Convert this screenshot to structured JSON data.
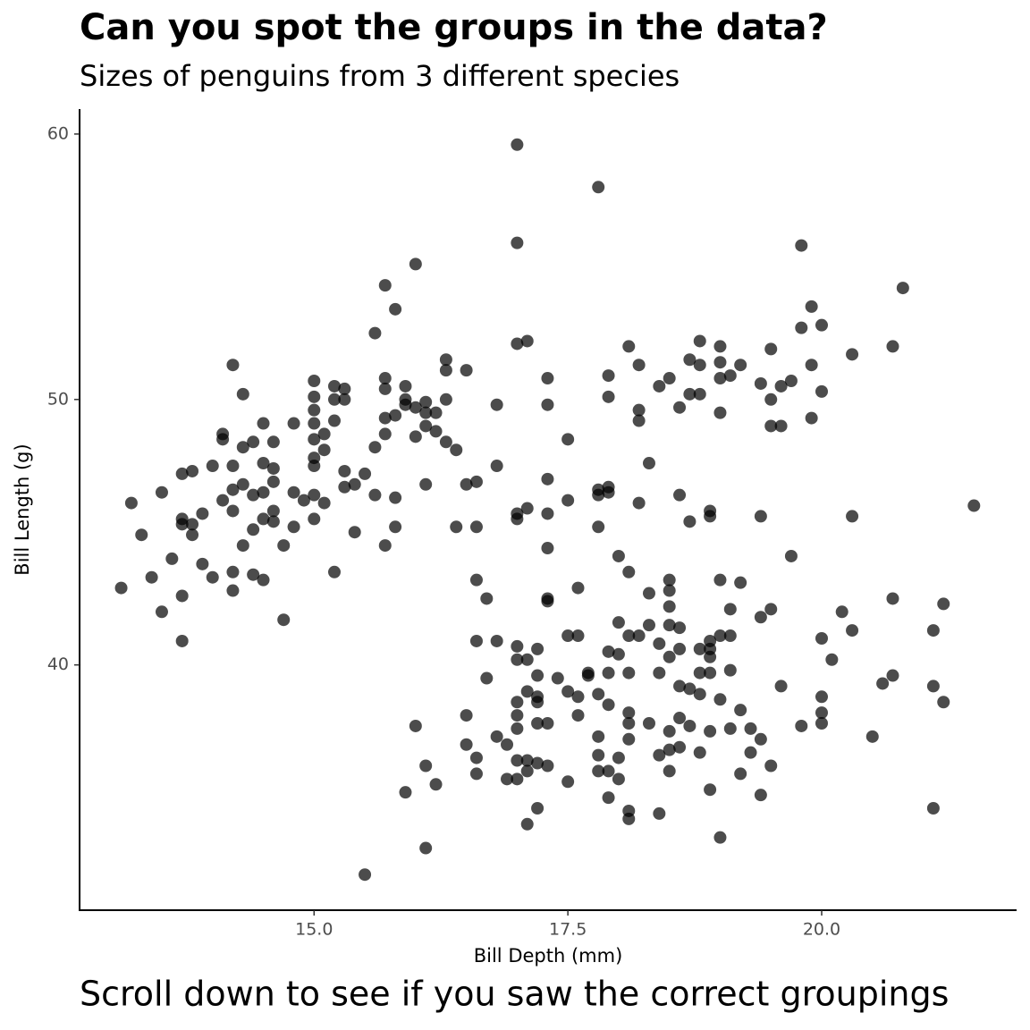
{
  "chart_data": {
    "type": "scatter",
    "title": "Can you spot the groups in the data?",
    "subtitle": "Sizes of penguins from 3 different species",
    "x_label": "Bill Depth (mm)",
    "y_label": "Bill Length (g)",
    "caption": "Scroll down to see if you saw the correct groupings",
    "color": "#000000",
    "xlim": [
      12.69,
      21.92
    ],
    "ylim": [
      30.76,
      60.94
    ],
    "xticks": [
      {
        "value": 15,
        "label": "15.0"
      },
      {
        "value": 17.5,
        "label": "17.5"
      },
      {
        "value": 20,
        "label": "20.0"
      }
    ],
    "yticks": [
      40,
      50,
      60
    ],
    "grid": false,
    "x": [
      13.1,
      13.2,
      13.3,
      13.4,
      13.5,
      13.5,
      13.6,
      13.7,
      13.7,
      13.7,
      13.7,
      13.7,
      13.8,
      13.8,
      13.8,
      13.9,
      13.9,
      14.0,
      14.0,
      14.1,
      14.1,
      14.1,
      14.2,
      14.2,
      14.2,
      14.2,
      14.2,
      14.2,
      14.3,
      14.3,
      14.3,
      14.3,
      14.4,
      14.4,
      14.4,
      14.4,
      14.5,
      14.5,
      14.5,
      14.5,
      14.5,
      14.6,
      14.6,
      14.6,
      14.6,
      14.6,
      14.7,
      14.7,
      14.8,
      14.8,
      14.8,
      14.9,
      15.0,
      15.0,
      15.0,
      15.0,
      15.0,
      15.0,
      15.0,
      15.0,
      15.0,
      15.1,
      15.1,
      15.1,
      15.2,
      15.2,
      15.2,
      15.2,
      15.3,
      15.3,
      15.3,
      15.3,
      15.4,
      15.4,
      15.5,
      15.6,
      15.6,
      15.6,
      15.7,
      15.7,
      15.7,
      15.7,
      15.7,
      15.7,
      15.8,
      15.8,
      15.8,
      15.8,
      15.9,
      15.9,
      15.9,
      16.0,
      16.0,
      16.0,
      16.1,
      16.1,
      16.1,
      16.1,
      16.2,
      16.2,
      16.3,
      16.3,
      16.3,
      16.3,
      16.4,
      16.4,
      16.5,
      16.5,
      16.6,
      16.6,
      16.8,
      16.8,
      17.0,
      17.0,
      17.0,
      17.1,
      17.0,
      17.0,
      17.1,
      17.3,
      17.3,
      17.3,
      17.3,
      17.3,
      17.5,
      17.5,
      17.8,
      17.8,
      17.8,
      17.8,
      17.9,
      17.9,
      17.9,
      17.9,
      18.1,
      18.2,
      18.2,
      18.2,
      18.2,
      18.3,
      18.4,
      18.5,
      18.6,
      18.6,
      18.7,
      18.7,
      18.7,
      18.8,
      18.8,
      18.8,
      18.9,
      18.9,
      19.0,
      19.0,
      19.0,
      19.0,
      19.1,
      19.2,
      19.4,
      19.4,
      19.5,
      19.5,
      19.5,
      19.6,
      19.6,
      19.7,
      19.7,
      19.8,
      19.8,
      19.9,
      19.9,
      19.9,
      20.0,
      20.0,
      20.3,
      20.3,
      20.7,
      20.8,
      21.5,
      15.5,
      16.0,
      16.1,
      16.1,
      15.9,
      16.2,
      16.5,
      16.5,
      16.6,
      16.6,
      16.6,
      16.6,
      16.7,
      16.7,
      16.8,
      16.8,
      16.9,
      16.9,
      17.0,
      17.0,
      17.0,
      17.0,
      17.0,
      17.0,
      17.0,
      17.1,
      17.1,
      17.1,
      17.1,
      17.1,
      17.2,
      17.2,
      17.2,
      17.2,
      17.2,
      17.2,
      17.2,
      17.3,
      17.3,
      17.3,
      17.3,
      17.4,
      17.5,
      17.5,
      17.5,
      17.6,
      17.6,
      17.6,
      17.6,
      17.7,
      17.7,
      17.8,
      17.8,
      17.8,
      17.8,
      17.9,
      17.9,
      17.9,
      17.9,
      17.9,
      18.0,
      18.0,
      18.0,
      18.0,
      18.0,
      18.1,
      18.1,
      18.1,
      18.1,
      18.1,
      18.1,
      18.1,
      18.1,
      18.2,
      18.3,
      18.3,
      18.3,
      18.4,
      18.4,
      18.4,
      18.4,
      18.5,
      18.5,
      18.5,
      18.5,
      18.5,
      18.5,
      18.5,
      18.5,
      18.6,
      18.6,
      18.6,
      18.6,
      18.6,
      18.7,
      18.7,
      18.8,
      18.8,
      18.8,
      18.8,
      18.9,
      18.9,
      18.9,
      18.9,
      18.9,
      18.9,
      19.0,
      19.0,
      19.0,
      19.0,
      19.1,
      19.1,
      19.1,
      19.1,
      19.2,
      19.2,
      19.2,
      19.3,
      19.3,
      19.4,
      19.4,
      19.4,
      19.5,
      19.5,
      19.6,
      19.8,
      20.0,
      20.0,
      20.0,
      20.0,
      20.1,
      20.2,
      20.3,
      20.5,
      20.6,
      20.7,
      20.7,
      21.1,
      21.1,
      21.1,
      21.2,
      21.2
    ],
    "values": [
      42.9,
      46.1,
      44.9,
      43.3,
      46.5,
      42.0,
      44.0,
      47.2,
      45.5,
      45.3,
      42.6,
      40.9,
      47.3,
      45.3,
      44.9,
      45.7,
      43.8,
      47.5,
      43.3,
      48.7,
      48.5,
      46.2,
      51.3,
      47.5,
      46.6,
      45.8,
      43.5,
      42.8,
      50.2,
      48.2,
      46.8,
      44.5,
      48.4,
      46.4,
      45.1,
      43.4,
      49.1,
      47.6,
      46.5,
      45.5,
      43.2,
      48.4,
      47.4,
      46.9,
      45.8,
      45.4,
      44.5,
      41.7,
      49.1,
      46.5,
      45.2,
      46.2,
      50.7,
      50.1,
      49.6,
      49.1,
      48.5,
      47.8,
      47.5,
      46.4,
      45.5,
      48.7,
      48.1,
      46.1,
      50.5,
      50.0,
      49.2,
      43.5,
      50.4,
      50.0,
      47.3,
      46.7,
      46.8,
      45.0,
      47.2,
      52.5,
      48.2,
      46.4,
      54.3,
      50.8,
      50.4,
      49.3,
      48.7,
      44.5,
      53.4,
      49.4,
      46.3,
      45.2,
      50.5,
      50.0,
      49.8,
      55.1,
      49.7,
      48.6,
      49.9,
      49.5,
      49.0,
      46.8,
      49.5,
      48.8,
      51.5,
      51.1,
      50.0,
      48.4,
      48.1,
      45.2,
      51.1,
      46.8,
      46.9,
      45.2,
      49.8,
      47.5,
      59.6,
      55.9,
      52.1,
      52.2,
      45.7,
      45.5,
      45.9,
      50.8,
      49.8,
      47.0,
      45.7,
      44.4,
      48.5,
      46.2,
      58.0,
      46.6,
      46.4,
      45.2,
      50.9,
      50.1,
      46.7,
      46.5,
      52.0,
      51.3,
      49.6,
      49.2,
      46.1,
      47.6,
      50.5,
      50.8,
      49.7,
      46.4,
      51.5,
      50.2,
      45.4,
      52.2,
      51.3,
      50.2,
      45.8,
      45.6,
      52.0,
      51.4,
      50.8,
      49.5,
      50.9,
      51.3,
      50.6,
      45.6,
      51.9,
      50.0,
      49.0,
      50.5,
      49.0,
      50.7,
      44.1,
      55.8,
      52.7,
      53.5,
      51.3,
      49.3,
      52.8,
      50.3,
      51.7,
      45.6,
      52.0,
      54.2,
      46.0,
      32.1,
      37.7,
      36.2,
      33.1,
      35.2,
      35.5,
      38.1,
      37.0,
      43.2,
      40.9,
      36.5,
      35.9,
      42.5,
      39.5,
      40.9,
      37.3,
      37.0,
      35.7,
      40.7,
      40.2,
      38.6,
      38.1,
      37.6,
      36.4,
      35.7,
      40.2,
      39.0,
      36.4,
      36.0,
      34.0,
      40.6,
      39.6,
      38.8,
      38.6,
      37.8,
      36.3,
      34.6,
      42.5,
      42.4,
      37.8,
      36.2,
      39.5,
      41.1,
      39.0,
      35.6,
      42.9,
      41.1,
      38.8,
      38.1,
      39.7,
      39.6,
      38.9,
      37.3,
      36.6,
      36.0,
      40.5,
      39.7,
      38.5,
      36.0,
      35.0,
      44.1,
      41.6,
      40.4,
      36.5,
      35.7,
      43.5,
      41.1,
      39.7,
      38.2,
      37.8,
      37.2,
      34.5,
      34.2,
      41.1,
      42.7,
      41.5,
      37.8,
      40.8,
      39.7,
      36.6,
      34.4,
      43.2,
      42.8,
      42.2,
      41.5,
      40.3,
      37.5,
      36.8,
      36.0,
      41.4,
      40.6,
      39.2,
      38.0,
      36.9,
      39.1,
      37.7,
      40.6,
      39.7,
      38.9,
      36.7,
      40.9,
      40.6,
      40.3,
      39.7,
      37.5,
      35.3,
      43.2,
      41.1,
      38.7,
      33.5,
      42.1,
      41.1,
      39.8,
      37.6,
      43.1,
      38.3,
      35.9,
      37.6,
      36.7,
      41.8,
      37.2,
      35.1,
      42.1,
      36.2,
      39.2,
      37.7,
      41.0,
      38.8,
      38.2,
      37.8,
      40.2,
      42.0,
      41.3,
      37.3,
      39.3,
      42.5,
      39.6,
      41.3,
      39.2,
      34.6,
      42.3,
      38.6
    ]
  }
}
